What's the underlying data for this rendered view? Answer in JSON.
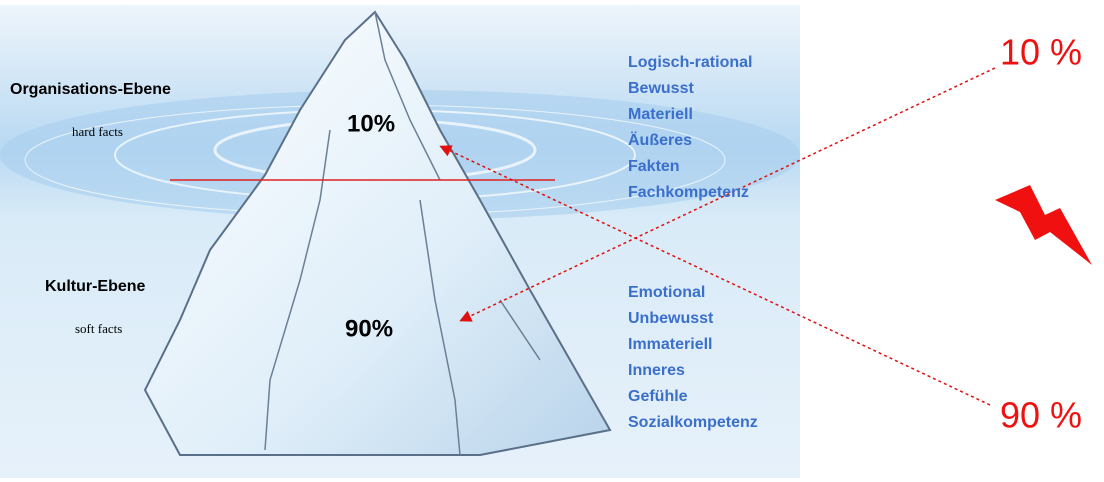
{
  "left_labels": {
    "upper": {
      "title": "Organisations-Ebene",
      "subtitle": "hard facts"
    },
    "lower": {
      "title": "Kultur-Ebene",
      "subtitle": "soft facts"
    }
  },
  "iceberg": {
    "tip_label": "10%",
    "base_label": "90%"
  },
  "right_lists": {
    "upper": [
      "Logisch-rational",
      "Bewusst",
      "Materiell",
      "Äußeres",
      "Fakten",
      "Fachkompetenz"
    ],
    "lower": [
      "Emotional",
      "Unbewusst",
      "Immateriell",
      "Inneres",
      "Gefühle",
      "Sozialkompetenz"
    ]
  },
  "outer_labels": {
    "top": "10 %",
    "bottom": "90 %"
  }
}
